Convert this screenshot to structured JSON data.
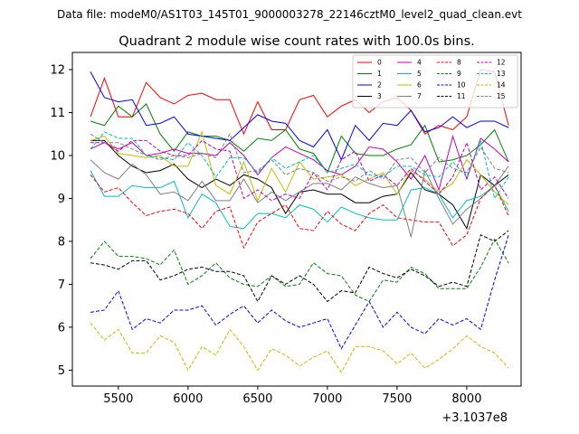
{
  "suptitle": "Data file: modeM0/AS1T03_145T01_9000003278_22146cztM0_level2_quad_clean.evt",
  "chart_data": {
    "type": "line",
    "title": "Quadrant 2 module wise count rates with 100.0s bins.",
    "xlabel": "",
    "ylabel": "",
    "x_offset_label": "+3.1037e8",
    "xlim": [
      5170,
      8390
    ],
    "ylim": [
      4.63,
      12.4
    ],
    "xticks": [
      5500,
      6000,
      6500,
      7000,
      7500,
      8000
    ],
    "yticks": [
      5,
      6,
      7,
      8,
      9,
      10,
      11,
      12
    ],
    "grid": false,
    "legend_position": "top-right",
    "x": [
      5300,
      5400,
      5500,
      5600,
      5700,
      5800,
      5900,
      6000,
      6100,
      6200,
      6300,
      6400,
      6500,
      6600,
      6700,
      6800,
      6900,
      7000,
      7100,
      7200,
      7300,
      7400,
      7500,
      7600,
      7700,
      7800,
      7900,
      8000,
      8100,
      8200,
      8300
    ],
    "series": [
      {
        "name": "0",
        "color": "#ff0000",
        "dash": "solid",
        "values": [
          10.9,
          11.8,
          10.9,
          10.9,
          11.7,
          11.35,
          11.2,
          11.4,
          11.45,
          11.3,
          11.3,
          10.5,
          11.25,
          10.6,
          10.6,
          11.3,
          11.4,
          10.9,
          11.15,
          11.3,
          11.0,
          11.25,
          11.35,
          11.05,
          10.5,
          10.7,
          10.6,
          10.9,
          12.0,
          11.95,
          10.7
        ]
      },
      {
        "name": "1",
        "color": "#008000",
        "dash": "solid",
        "values": [
          10.8,
          10.7,
          11.15,
          10.9,
          11.2,
          10.5,
          10.1,
          10.55,
          10.45,
          10.45,
          10.35,
          10.1,
          10.4,
          10.35,
          10.6,
          10.15,
          10.05,
          9.6,
          10.45,
          10.05,
          10.0,
          10.0,
          10.15,
          10.25,
          10.7,
          9.85,
          9.9,
          10.0,
          10.25,
          10.6,
          9.85
        ]
      },
      {
        "name": "2",
        "color": "#0000ff",
        "dash": "solid",
        "values": [
          11.95,
          11.35,
          11.25,
          11.3,
          10.7,
          10.75,
          10.9,
          10.5,
          10.45,
          10.4,
          10.35,
          10.65,
          10.95,
          10.8,
          10.75,
          10.35,
          10.2,
          10.6,
          9.9,
          10.7,
          10.35,
          10.75,
          10.7,
          11.05,
          10.55,
          10.65,
          10.9,
          10.65,
          10.8,
          10.8,
          10.65
        ]
      },
      {
        "name": "3",
        "color": "#000000",
        "dash": "solid",
        "values": [
          10.35,
          10.35,
          10.0,
          9.75,
          9.6,
          9.65,
          9.8,
          9.45,
          9.25,
          9.45,
          9.3,
          9.55,
          9.45,
          9.25,
          8.65,
          9.15,
          9.2,
          9.1,
          9.1,
          8.9,
          8.9,
          9.05,
          9.1,
          9.6,
          9.2,
          9.1,
          8.85,
          8.3,
          9.55,
          9.3,
          9.55
        ]
      },
      {
        "name": "4",
        "color": "#bf00bf",
        "dash": "solid",
        "values": [
          10.15,
          10.3,
          10.15,
          10.3,
          10.0,
          10.05,
          10.15,
          10.05,
          10.05,
          10.0,
          10.3,
          10.0,
          9.55,
          9.95,
          10.2,
          10.05,
          9.9,
          9.65,
          9.55,
          9.75,
          10.2,
          10.15,
          9.85,
          9.45,
          10.0,
          9.2,
          10.45,
          9.45,
          10.4,
          10.15,
          9.85
        ]
      },
      {
        "name": "5",
        "color": "#00bfbf",
        "dash": "solid",
        "values": [
          9.65,
          9.05,
          9.05,
          9.3,
          9.25,
          9.25,
          9.4,
          8.55,
          9.1,
          8.9,
          8.35,
          8.3,
          8.65,
          8.65,
          8.55,
          8.85,
          8.75,
          8.45,
          8.8,
          8.65,
          8.55,
          8.5,
          8.5,
          9.2,
          9.25,
          9.1,
          8.55,
          8.95,
          9.05,
          9.3,
          8.7
        ]
      },
      {
        "name": "6",
        "color": "#bfbf00",
        "dash": "solid",
        "values": [
          10.35,
          10.45,
          10.05,
          10.0,
          9.95,
          10.0,
          9.75,
          9.75,
          10.55,
          9.3,
          9.1,
          9.85,
          8.95,
          9.7,
          9.15,
          9.85,
          9.45,
          9.5,
          9.55,
          9.3,
          9.45,
          9.6,
          9.1,
          9.65,
          9.45,
          9.15,
          9.35,
          9.9,
          9.55,
          9.15,
          8.85
        ]
      },
      {
        "name": "7",
        "color": "#808080",
        "dash": "solid",
        "values": [
          9.9,
          9.6,
          9.45,
          9.8,
          9.55,
          9.1,
          9.15,
          8.95,
          9.4,
          8.95,
          8.95,
          9.45,
          8.9,
          9.15,
          8.95,
          9.15,
          9.35,
          9.35,
          9.2,
          9.5,
          9.35,
          9.25,
          9.3,
          8.1,
          9.65,
          9.0,
          8.4,
          8.75,
          9.0,
          9.3,
          9.75
        ]
      },
      {
        "name": "8",
        "color": "#ff0000",
        "dash": "dashed",
        "values": [
          9.55,
          9.15,
          9.25,
          8.9,
          8.6,
          8.7,
          8.75,
          8.65,
          8.3,
          8.7,
          8.8,
          7.85,
          8.45,
          8.65,
          8.85,
          8.3,
          8.25,
          8.7,
          8.4,
          8.25,
          8.65,
          8.85,
          8.55,
          8.5,
          8.45,
          8.45,
          7.9,
          8.15,
          9.0,
          9.3,
          8.6
        ]
      },
      {
        "name": "9",
        "color": "#008000",
        "dash": "dashed",
        "values": [
          7.6,
          8.0,
          7.65,
          7.65,
          7.6,
          7.45,
          7.8,
          7.0,
          7.2,
          7.5,
          7.15,
          7.0,
          6.95,
          7.2,
          6.95,
          7.0,
          7.5,
          7.25,
          7.2,
          6.75,
          6.6,
          7.1,
          7.05,
          7.4,
          7.25,
          6.9,
          6.9,
          6.9,
          7.4,
          8.05,
          7.5
        ]
      },
      {
        "name": "10",
        "color": "#0000ff",
        "dash": "dashed",
        "values": [
          6.35,
          6.4,
          6.85,
          5.95,
          6.2,
          6.1,
          6.4,
          6.4,
          6.5,
          6.05,
          6.3,
          6.5,
          6.1,
          6.4,
          6.15,
          6.0,
          6.1,
          6.2,
          5.5,
          6.05,
          6.6,
          6.0,
          6.35,
          6.0,
          5.85,
          6.2,
          6.05,
          6.2,
          5.95,
          7.1,
          8.15
        ]
      },
      {
        "name": "11",
        "color": "#000000",
        "dash": "dashed",
        "values": [
          7.5,
          7.45,
          7.35,
          7.55,
          7.55,
          7.1,
          7.2,
          7.35,
          7.4,
          7.3,
          7.3,
          7.2,
          6.6,
          7.2,
          7.0,
          7.2,
          7.0,
          6.6,
          6.85,
          6.8,
          7.4,
          7.25,
          7.15,
          7.35,
          7.2,
          6.95,
          7.05,
          6.95,
          8.15,
          8.0,
          8.25
        ]
      },
      {
        "name": "12",
        "color": "#bf00bf",
        "dash": "dashed",
        "values": [
          10.3,
          10.3,
          10.1,
          10.35,
          10.35,
          10.1,
          10.0,
          10.0,
          10.35,
          10.15,
          10.1,
          9.0,
          9.2,
          8.95,
          9.1,
          9.0,
          9.6,
          9.2,
          9.9,
          10.1,
          9.4,
          9.55,
          9.3,
          9.7,
          9.4,
          9.1,
          9.5,
          10.3,
          9.2,
          9.5,
          9.0
        ]
      },
      {
        "name": "13",
        "color": "#00bfbf",
        "dash": "dashed",
        "values": [
          10.15,
          10.55,
          10.4,
          10.4,
          10.0,
          9.95,
          9.9,
          10.3,
          10.0,
          9.5,
          9.95,
          9.95,
          9.6,
          9.95,
          9.7,
          9.85,
          10.0,
          9.6,
          9.7,
          9.8,
          9.55,
          9.5,
          9.75,
          9.75,
          9.55,
          9.5,
          9.85,
          9.5,
          10.35,
          9.0,
          9.5
        ]
      },
      {
        "name": "14",
        "color": "#bfbf00",
        "dash": "dashed",
        "values": [
          6.1,
          5.7,
          5.95,
          5.4,
          5.4,
          5.8,
          5.65,
          5.0,
          5.55,
          5.35,
          5.95,
          5.55,
          5.0,
          5.5,
          5.35,
          5.1,
          5.3,
          5.45,
          4.95,
          5.55,
          5.55,
          5.45,
          5.15,
          5.4,
          5.05,
          5.25,
          5.5,
          5.8,
          5.55,
          5.4,
          5.05
        ]
      },
      {
        "name": "15",
        "color": "#808080",
        "dash": "dashed",
        "values": [
          10.5,
          10.3,
          10.3,
          10.15,
          10.0,
          9.9,
          10.0,
          9.95,
          10.05,
          9.95,
          10.5,
          9.6,
          9.65,
          9.9,
          9.55,
          9.7,
          9.6,
          9.4,
          9.5,
          9.4,
          9.65,
          9.45,
          9.9,
          9.95,
          9.6,
          9.95,
          9.7,
          9.6,
          10.2,
          9.7,
          9.6
        ]
      }
    ]
  }
}
